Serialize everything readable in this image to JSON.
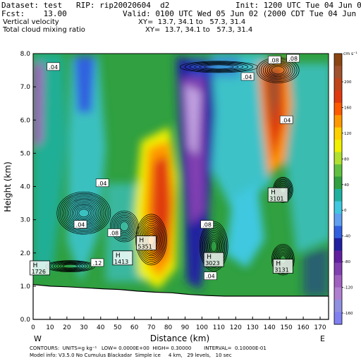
{
  "header": {
    "dataset": "Dataset: test   RIP: rip20020604  d2",
    "init": "Init: 1200 UTC Tue 04 Jun 02",
    "fcst": "Fcst:    13.00",
    "valid": "Valid: 0100 UTC Wed 05 Jun 02 (2000 CDT Tue 04 Jun 02)",
    "field1": "Vertical velocity",
    "xy1": "XY=  13.7, 34.1 to   57.3, 31.4",
    "field2": "Total cloud mixing ratio",
    "xy2": "XY=  13.7, 34.1 to   57.3, 31.4"
  },
  "footer": {
    "line1": "CONTOURS:  UNITS=g kg⁻¹   LOW= 0.0000E+00  HIGH= 0.30000        INTERVAL=  0.10000E-01",
    "line2": "Model info: V3.5.0 No Cumulus Blackadar  Simple ice     4 km,   29 levels,   10 sec"
  },
  "chart_data": {
    "type": "heatmap",
    "title": "",
    "xlabel": "Distance (km)",
    "ylabel": "Height (km)",
    "xlim": [
      0,
      175
    ],
    "ylim": [
      0,
      8
    ],
    "x_ticks": [
      "0",
      "10",
      "20",
      "30",
      "40",
      "50",
      "60",
      "70",
      "80",
      "90",
      "100",
      "110",
      "120",
      "130",
      "140",
      "150",
      "160",
      "170"
    ],
    "y_ticks": [
      "0.0",
      "1.0",
      "2.0",
      "3.0",
      "4.0",
      "5.0",
      "6.0",
      "7.0",
      "8.0"
    ],
    "x_ends": {
      "left": "W",
      "right": "E"
    },
    "colorbar": {
      "unit": "cm s⁻¹",
      "labels": [
        "200",
        "160",
        "120",
        "80",
        "40",
        "0",
        "-40",
        "-80",
        "-120",
        "-160"
      ],
      "colors": [
        "#8B4513",
        "#A0522D",
        "#C0451A",
        "#E03A10",
        "#FF5A00",
        "#FF9800",
        "#FFD000",
        "#F0F000",
        "#B0E030",
        "#60C040",
        "#30A040",
        "#20B0A0",
        "#40C8E0",
        "#60A0F0",
        "#3060E0",
        "#2020A0",
        "#6020A0",
        "#8040B0",
        "#A060C0",
        "#B080D0",
        "#9090E0",
        "#8080F0"
      ]
    },
    "terrain_height_km": [
      1.05,
      1.0,
      0.98,
      0.95,
      0.92,
      0.9,
      0.85,
      0.82,
      0.8,
      0.75,
      0.72,
      0.7,
      0.7,
      0.7,
      0.7,
      0.7,
      0.7,
      0.7
    ],
    "extrema_labels": [
      {
        "text": "H\n1726",
        "x": 4,
        "y": 1.55
      },
      {
        "text": "H\n5351",
        "x": 67,
        "y": 2.3
      },
      {
        "text": "H\n1413",
        "x": 53,
        "y": 1.85
      },
      {
        "text": "H\n3023",
        "x": 107,
        "y": 1.8
      },
      {
        "text": "H\n3101",
        "x": 145,
        "y": 3.75
      },
      {
        "text": "H\n3131",
        "x": 148,
        "y": 1.6
      }
    ],
    "contour_labels": [
      {
        "text": ".04",
        "x": 12,
        "y": 7.6
      },
      {
        "text": ".04",
        "x": 41,
        "y": 4.1
      },
      {
        "text": ".04",
        "x": 28,
        "y": 2.85
      },
      {
        "text": ".12",
        "x": 38,
        "y": 1.7
      },
      {
        "text": ".08",
        "x": 48,
        "y": 2.6
      },
      {
        "text": ".08",
        "x": 103,
        "y": 2.85
      },
      {
        "text": ".04",
        "x": 105,
        "y": 1.3
      },
      {
        "text": ".04",
        "x": 127,
        "y": 7.3
      },
      {
        "text": ".08",
        "x": 143,
        "y": 7.8
      },
      {
        "text": ".08",
        "x": 154,
        "y": 7.85
      },
      {
        "text": ".04",
        "x": 150,
        "y": 6.0
      }
    ]
  }
}
